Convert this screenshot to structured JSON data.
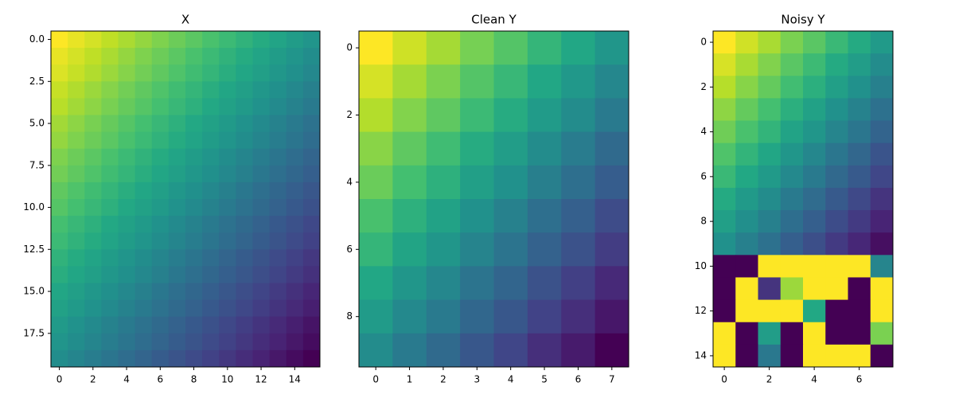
{
  "chart_data": [
    {
      "type": "heatmap",
      "title": "X",
      "colormap": "viridis",
      "xlim": [
        -0.5,
        15.5
      ],
      "xticks": [
        0,
        2,
        4,
        6,
        8,
        10,
        12,
        14
      ],
      "ylim": [
        19.5,
        -0.5
      ],
      "yticks": [
        {
          "value": 0,
          "label": "0.0"
        },
        2.5,
        {
          "value": 5,
          "label": "5.0"
        },
        7.5,
        {
          "value": 10,
          "label": "10.0"
        },
        12.5,
        {
          "value": 15,
          "label": "15.0"
        },
        17.5
      ],
      "z": [
        [
          1.0,
          0.97,
          0.94,
          0.91,
          0.88,
          0.85,
          0.82,
          0.79,
          0.76,
          0.73,
          0.7,
          0.67,
          0.64,
          0.61,
          0.58,
          0.55
        ],
        [
          0.97,
          0.94,
          0.91,
          0.88,
          0.85,
          0.82,
          0.79,
          0.76,
          0.73,
          0.7,
          0.67,
          0.64,
          0.61,
          0.58,
          0.55,
          0.52
        ],
        [
          0.95,
          0.92,
          0.89,
          0.86,
          0.83,
          0.8,
          0.77,
          0.74,
          0.71,
          0.68,
          0.65,
          0.62,
          0.59,
          0.56,
          0.53,
          0.5
        ],
        [
          0.92,
          0.89,
          0.86,
          0.83,
          0.8,
          0.77,
          0.74,
          0.71,
          0.68,
          0.65,
          0.62,
          0.59,
          0.56,
          0.53,
          0.5,
          0.47
        ],
        [
          0.9,
          0.87,
          0.84,
          0.81,
          0.78,
          0.75,
          0.72,
          0.69,
          0.66,
          0.63,
          0.6,
          0.57,
          0.54,
          0.51,
          0.48,
          0.45
        ],
        [
          0.87,
          0.84,
          0.81,
          0.78,
          0.75,
          0.72,
          0.69,
          0.66,
          0.63,
          0.6,
          0.57,
          0.54,
          0.51,
          0.48,
          0.45,
          0.42
        ],
        [
          0.85,
          0.82,
          0.79,
          0.76,
          0.73,
          0.7,
          0.67,
          0.64,
          0.61,
          0.58,
          0.55,
          0.52,
          0.49,
          0.46,
          0.43,
          0.4
        ],
        [
          0.82,
          0.79,
          0.76,
          0.73,
          0.7,
          0.67,
          0.64,
          0.61,
          0.58,
          0.55,
          0.52,
          0.49,
          0.46,
          0.43,
          0.4,
          0.37
        ],
        [
          0.8,
          0.77,
          0.74,
          0.71,
          0.68,
          0.65,
          0.62,
          0.59,
          0.56,
          0.53,
          0.5,
          0.47,
          0.44,
          0.41,
          0.38,
          0.35
        ],
        [
          0.77,
          0.74,
          0.71,
          0.68,
          0.65,
          0.62,
          0.59,
          0.56,
          0.53,
          0.5,
          0.47,
          0.44,
          0.41,
          0.38,
          0.35,
          0.32
        ],
        [
          0.75,
          0.72,
          0.69,
          0.66,
          0.63,
          0.6,
          0.57,
          0.54,
          0.51,
          0.48,
          0.45,
          0.42,
          0.39,
          0.36,
          0.33,
          0.3
        ],
        [
          0.72,
          0.69,
          0.66,
          0.63,
          0.6,
          0.57,
          0.54,
          0.51,
          0.48,
          0.45,
          0.42,
          0.39,
          0.36,
          0.33,
          0.3,
          0.27
        ],
        [
          0.7,
          0.67,
          0.64,
          0.61,
          0.58,
          0.55,
          0.52,
          0.49,
          0.46,
          0.43,
          0.4,
          0.37,
          0.34,
          0.31,
          0.28,
          0.25
        ],
        [
          0.67,
          0.64,
          0.61,
          0.58,
          0.55,
          0.52,
          0.49,
          0.46,
          0.43,
          0.4,
          0.37,
          0.34,
          0.31,
          0.28,
          0.25,
          0.22
        ],
        [
          0.65,
          0.62,
          0.59,
          0.56,
          0.53,
          0.5,
          0.47,
          0.44,
          0.41,
          0.38,
          0.35,
          0.32,
          0.29,
          0.26,
          0.23,
          0.2
        ],
        [
          0.62,
          0.59,
          0.56,
          0.53,
          0.5,
          0.47,
          0.44,
          0.41,
          0.38,
          0.35,
          0.32,
          0.29,
          0.26,
          0.23,
          0.2,
          0.17
        ],
        [
          0.6,
          0.57,
          0.54,
          0.51,
          0.48,
          0.45,
          0.42,
          0.39,
          0.36,
          0.33,
          0.3,
          0.27,
          0.24,
          0.21,
          0.18,
          0.15
        ],
        [
          0.57,
          0.54,
          0.51,
          0.48,
          0.45,
          0.42,
          0.39,
          0.36,
          0.33,
          0.3,
          0.27,
          0.24,
          0.21,
          0.18,
          0.15,
          0.12
        ],
        [
          0.55,
          0.52,
          0.49,
          0.46,
          0.43,
          0.4,
          0.37,
          0.34,
          0.31,
          0.28,
          0.25,
          0.22,
          0.19,
          0.16,
          0.13,
          0.1
        ],
        [
          0.52,
          0.49,
          0.46,
          0.43,
          0.4,
          0.37,
          0.34,
          0.31,
          0.28,
          0.25,
          0.22,
          0.19,
          0.16,
          0.13,
          0.1,
          0.07
        ]
      ]
    },
    {
      "type": "heatmap",
      "title": "Clean Y",
      "colormap": "viridis",
      "xlim": [
        -0.5,
        7.5
      ],
      "xticks": [
        0,
        1,
        2,
        3,
        4,
        5,
        6,
        7
      ],
      "ylim": [
        9.5,
        -0.5
      ],
      "yticks": [
        0,
        2,
        4,
        6,
        8
      ],
      "z": [
        [
          1.0,
          0.93,
          0.87,
          0.8,
          0.74,
          0.67,
          0.61,
          0.54
        ],
        [
          0.94,
          0.87,
          0.81,
          0.74,
          0.68,
          0.61,
          0.55,
          0.48
        ],
        [
          0.89,
          0.82,
          0.76,
          0.69,
          0.63,
          0.56,
          0.5,
          0.43
        ],
        [
          0.83,
          0.76,
          0.7,
          0.63,
          0.57,
          0.5,
          0.44,
          0.37
        ],
        [
          0.78,
          0.71,
          0.65,
          0.58,
          0.52,
          0.45,
          0.39,
          0.32
        ],
        [
          0.72,
          0.65,
          0.59,
          0.52,
          0.46,
          0.39,
          0.33,
          0.26
        ],
        [
          0.67,
          0.6,
          0.54,
          0.47,
          0.41,
          0.34,
          0.28,
          0.21
        ],
        [
          0.61,
          0.54,
          0.48,
          0.41,
          0.35,
          0.28,
          0.22,
          0.15
        ],
        [
          0.56,
          0.49,
          0.43,
          0.36,
          0.3,
          0.23,
          0.17,
          0.1
        ],
        [
          0.5,
          0.43,
          0.37,
          0.3,
          0.24,
          0.17,
          0.11,
          0.04
        ]
      ]
    },
    {
      "type": "heatmap",
      "title": "Noisy Y",
      "colormap": "viridis",
      "xlim": [
        -0.5,
        7.5
      ],
      "xticks": [
        0,
        2,
        4,
        6
      ],
      "ylim": [
        14.5,
        -0.5
      ],
      "yticks": [
        0,
        2,
        4,
        6,
        8,
        10,
        12,
        14
      ],
      "z": [
        [
          1.0,
          0.93,
          0.87,
          0.8,
          0.74,
          0.67,
          0.61,
          0.54
        ],
        [
          0.94,
          0.87,
          0.81,
          0.74,
          0.68,
          0.61,
          0.55,
          0.48
        ],
        [
          0.89,
          0.82,
          0.76,
          0.69,
          0.63,
          0.56,
          0.5,
          0.43
        ],
        [
          0.83,
          0.76,
          0.7,
          0.63,
          0.57,
          0.5,
          0.44,
          0.37
        ],
        [
          0.78,
          0.71,
          0.65,
          0.58,
          0.52,
          0.45,
          0.39,
          0.32
        ],
        [
          0.72,
          0.65,
          0.59,
          0.52,
          0.46,
          0.39,
          0.33,
          0.26
        ],
        [
          0.67,
          0.6,
          0.54,
          0.47,
          0.41,
          0.34,
          0.28,
          0.21
        ],
        [
          0.61,
          0.54,
          0.48,
          0.41,
          0.35,
          0.28,
          0.22,
          0.15
        ],
        [
          0.56,
          0.49,
          0.43,
          0.36,
          0.3,
          0.23,
          0.17,
          0.1
        ],
        [
          0.5,
          0.43,
          0.37,
          0.3,
          0.24,
          0.17,
          0.11,
          0.04
        ],
        [
          0.0,
          0.0,
          1.0,
          1.0,
          1.0,
          1.0,
          1.0,
          0.45
        ],
        [
          0.0,
          1.0,
          0.15,
          0.85,
          1.0,
          1.0,
          0.0,
          1.0
        ],
        [
          0.0,
          1.0,
          1.0,
          1.0,
          0.6,
          0.0,
          0.0,
          1.0
        ],
        [
          1.0,
          0.0,
          0.55,
          0.0,
          1.0,
          0.0,
          0.0,
          0.8
        ],
        [
          1.0,
          0.0,
          0.4,
          0.0,
          1.0,
          1.0,
          1.0,
          0.0
        ]
      ]
    }
  ]
}
